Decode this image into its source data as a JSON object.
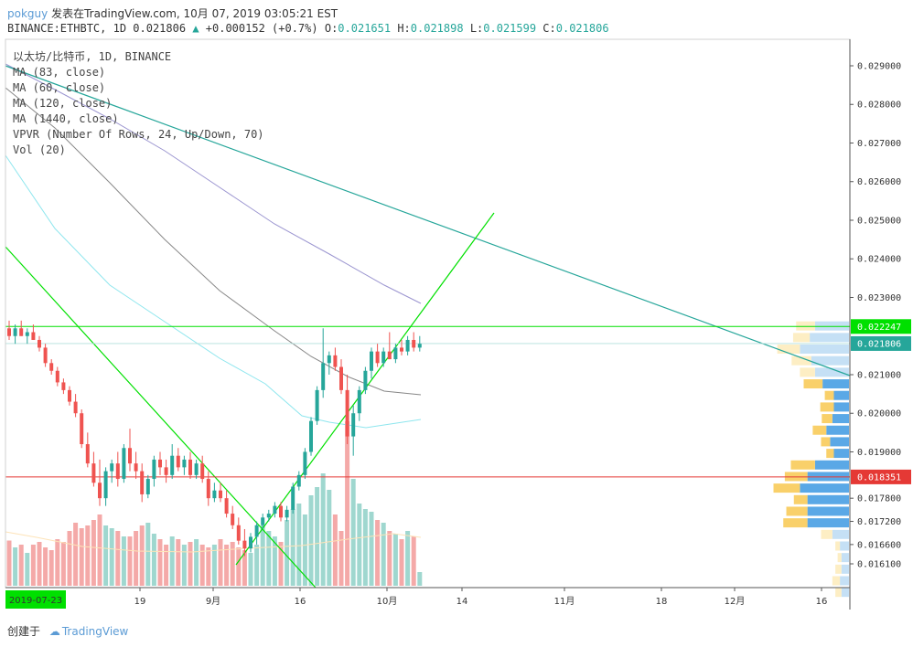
{
  "header": {
    "user": "pokguy",
    "published": "发表在TradingView.com, 10月 07, 2019 03:05:21 EST",
    "symbol": "BINANCE:ETHBTC, 1D",
    "last": "0.021806",
    "change": "+0.000152 (+0.7%)",
    "o_label": "O:",
    "o_value": "0.021651",
    "h_label": "H:",
    "h_value": "0.021898",
    "l_label": "L:",
    "l_value": "0.021599",
    "c_label": "C:",
    "c_value": "0.021806"
  },
  "legend": [
    "以太坊/比特币, 1D, BINANCE",
    "MA (83, close)",
    "MA (60, close)",
    "MA (120, close)",
    "MA (1440, close)",
    "VPVR (Number Of Rows, 24, Up/Down, 70)",
    "Vol (20)"
  ],
  "footer": {
    "created": "创建于",
    "brand": "TradingView"
  },
  "colors": {
    "up": "#26a69a",
    "down": "#ef5350",
    "trend": "#00e000",
    "resist": "#26a69a",
    "support": "#e53935"
  },
  "chart_data": {
    "type": "candlestick",
    "y_ticks": [
      "0.029000",
      "0.028000",
      "0.027000",
      "0.026000",
      "0.025000",
      "0.024000",
      "0.023000",
      "0.021000",
      "0.020000",
      "0.019000",
      "0.017800",
      "0.017200",
      "0.016600",
      "0.016100"
    ],
    "x_ticks": [
      "19",
      "9月",
      "16",
      "10月",
      "14",
      "11月",
      "18",
      "12月",
      "16"
    ],
    "date_tag": "2019-07-23",
    "price_tags": [
      {
        "label": "0.022247",
        "value": 0.022247,
        "color": "#00e000"
      },
      {
        "label": "0.021806",
        "value": 0.021806,
        "color": "#26a69a"
      },
      {
        "label": "0.018351",
        "value": 0.018351,
        "color": "#e53935"
      }
    ],
    "ylim": [
      0.0158,
      0.03
    ],
    "candles": [
      [
        0.0222,
        0.0224,
        0.0219,
        0.022
      ],
      [
        0.022,
        0.0223,
        0.0218,
        0.0222
      ],
      [
        0.0222,
        0.0224,
        0.022,
        0.022
      ],
      [
        0.022,
        0.0222,
        0.0218,
        0.0221
      ],
      [
        0.0221,
        0.0223,
        0.0219,
        0.0219
      ],
      [
        0.0219,
        0.022,
        0.0216,
        0.0217
      ],
      [
        0.0217,
        0.0218,
        0.0212,
        0.0213
      ],
      [
        0.0213,
        0.0214,
        0.021,
        0.0211
      ],
      [
        0.0211,
        0.0212,
        0.0207,
        0.0208
      ],
      [
        0.0208,
        0.0209,
        0.0205,
        0.0206
      ],
      [
        0.0206,
        0.0207,
        0.0202,
        0.0203
      ],
      [
        0.0203,
        0.0205,
        0.0199,
        0.02
      ],
      [
        0.02,
        0.0201,
        0.0191,
        0.0192
      ],
      [
        0.0192,
        0.0195,
        0.0186,
        0.0187
      ],
      [
        0.0187,
        0.019,
        0.0181,
        0.0182
      ],
      [
        0.0182,
        0.0188,
        0.0176,
        0.0178
      ],
      [
        0.0178,
        0.0186,
        0.0176,
        0.0185
      ],
      [
        0.0185,
        0.0188,
        0.0182,
        0.0187
      ],
      [
        0.0187,
        0.019,
        0.0181,
        0.0183
      ],
      [
        0.0183,
        0.0192,
        0.0182,
        0.0191
      ],
      [
        0.0191,
        0.0196,
        0.0185,
        0.0187
      ],
      [
        0.0187,
        0.019,
        0.0183,
        0.0185
      ],
      [
        0.0185,
        0.0187,
        0.0177,
        0.0179
      ],
      [
        0.0179,
        0.0184,
        0.0178,
        0.0183
      ],
      [
        0.0183,
        0.0189,
        0.0181,
        0.0188
      ],
      [
        0.0188,
        0.019,
        0.0184,
        0.0186
      ],
      [
        0.0186,
        0.0188,
        0.0182,
        0.0184
      ],
      [
        0.0184,
        0.0192,
        0.0183,
        0.0189
      ],
      [
        0.0189,
        0.0191,
        0.0185,
        0.0186
      ],
      [
        0.0186,
        0.0189,
        0.0184,
        0.0188
      ],
      [
        0.0188,
        0.019,
        0.0183,
        0.0184
      ],
      [
        0.0184,
        0.0188,
        0.0183,
        0.0187
      ],
      [
        0.0187,
        0.0189,
        0.0182,
        0.0183
      ],
      [
        0.0183,
        0.0185,
        0.0176,
        0.0178
      ],
      [
        0.0178,
        0.0182,
        0.0177,
        0.018
      ],
      [
        0.018,
        0.0182,
        0.0177,
        0.0178
      ],
      [
        0.0178,
        0.018,
        0.0173,
        0.0174
      ],
      [
        0.0174,
        0.0176,
        0.017,
        0.0171
      ],
      [
        0.0171,
        0.0173,
        0.0166,
        0.0167
      ],
      [
        0.0167,
        0.017,
        0.0163,
        0.0165
      ],
      [
        0.0165,
        0.0169,
        0.0164,
        0.0168
      ],
      [
        0.0168,
        0.0172,
        0.0166,
        0.0171
      ],
      [
        0.0171,
        0.0174,
        0.017,
        0.0173
      ],
      [
        0.0173,
        0.0175,
        0.0172,
        0.0174
      ],
      [
        0.0174,
        0.0177,
        0.0173,
        0.0176
      ],
      [
        0.0176,
        0.0177,
        0.0172,
        0.0173
      ],
      [
        0.0173,
        0.0176,
        0.0172,
        0.0175
      ],
      [
        0.0175,
        0.0182,
        0.0174,
        0.0181
      ],
      [
        0.0181,
        0.0185,
        0.018,
        0.0184
      ],
      [
        0.0184,
        0.0191,
        0.0183,
        0.019
      ],
      [
        0.019,
        0.0199,
        0.0189,
        0.0198
      ],
      [
        0.0198,
        0.0207,
        0.0197,
        0.0206
      ],
      [
        0.0206,
        0.0222,
        0.0204,
        0.0213
      ],
      [
        0.0213,
        0.0216,
        0.021,
        0.0215
      ],
      [
        0.0215,
        0.0217,
        0.0211,
        0.0212
      ],
      [
        0.0212,
        0.0214,
        0.0205,
        0.0206
      ],
      [
        0.0206,
        0.021,
        0.0192,
        0.0194
      ],
      [
        0.0194,
        0.0202,
        0.0189,
        0.02
      ],
      [
        0.02,
        0.0207,
        0.0198,
        0.0206
      ],
      [
        0.0206,
        0.0212,
        0.0205,
        0.0211
      ],
      [
        0.0211,
        0.0217,
        0.0209,
        0.0216
      ],
      [
        0.0216,
        0.0218,
        0.0212,
        0.0213
      ],
      [
        0.0213,
        0.0217,
        0.0212,
        0.0216
      ],
      [
        0.0216,
        0.0221,
        0.0214,
        0.0214
      ],
      [
        0.0214,
        0.0218,
        0.0213,
        0.0217
      ],
      [
        0.0217,
        0.0219,
        0.0215,
        0.0216
      ],
      [
        0.0216,
        0.022,
        0.0215,
        0.0219
      ],
      [
        0.0219,
        0.0221,
        0.0216,
        0.0217
      ],
      [
        0.0217,
        0.022,
        0.0216,
        0.0218
      ]
    ],
    "volumes": [
      0.33,
      0.28,
      0.3,
      0.24,
      0.3,
      0.32,
      0.28,
      0.26,
      0.34,
      0.32,
      0.4,
      0.46,
      0.42,
      0.44,
      0.48,
      0.52,
      0.44,
      0.42,
      0.4,
      0.36,
      0.36,
      0.4,
      0.44,
      0.46,
      0.38,
      0.34,
      0.3,
      0.36,
      0.34,
      0.3,
      0.32,
      0.34,
      0.3,
      0.28,
      0.3,
      0.34,
      0.3,
      0.32,
      0.28,
      0.26,
      0.24,
      0.3,
      0.44,
      0.4,
      0.36,
      0.32,
      0.48,
      0.56,
      0.6,
      0.52,
      0.66,
      0.72,
      0.82,
      0.7,
      0.52,
      0.4,
      1.2,
      0.78,
      0.6,
      0.56,
      0.54,
      0.48,
      0.46,
      0.4,
      0.38,
      0.34,
      0.4,
      0.36,
      0.1
    ],
    "vpvr": [
      {
        "price": 0.02225,
        "up": 0.25,
        "down": 0.45
      },
      {
        "price": 0.02195,
        "up": 0.22,
        "down": 0.52
      },
      {
        "price": 0.02165,
        "up": 0.3,
        "down": 0.65
      },
      {
        "price": 0.02135,
        "up": 0.26,
        "down": 0.5
      },
      {
        "price": 0.02105,
        "up": 0.2,
        "down": 0.45
      },
      {
        "price": 0.02075,
        "up": 0.25,
        "down": 0.35
      },
      {
        "price": 0.02045,
        "up": 0.12,
        "down": 0.2
      },
      {
        "price": 0.02015,
        "up": 0.18,
        "down": 0.2
      },
      {
        "price": 0.01985,
        "up": 0.14,
        "down": 0.22
      },
      {
        "price": 0.01955,
        "up": 0.18,
        "down": 0.3
      },
      {
        "price": 0.01925,
        "up": 0.12,
        "down": 0.25
      },
      {
        "price": 0.01895,
        "up": 0.1,
        "down": 0.2
      },
      {
        "price": 0.01865,
        "up": 0.32,
        "down": 0.45
      },
      {
        "price": 0.01835,
        "up": 0.3,
        "down": 0.55
      },
      {
        "price": 0.01805,
        "up": 0.35,
        "down": 0.65
      },
      {
        "price": 0.01775,
        "up": 0.18,
        "down": 0.55
      },
      {
        "price": 0.01745,
        "up": 0.28,
        "down": 0.55
      },
      {
        "price": 0.01715,
        "up": 0.32,
        "down": 0.55
      },
      {
        "price": 0.01685,
        "up": 0.15,
        "down": 0.22
      },
      {
        "price": 0.01655,
        "up": 0.06,
        "down": 0.12
      },
      {
        "price": 0.01625,
        "up": 0.05,
        "down": 0.1
      },
      {
        "price": 0.01595,
        "up": 0.08,
        "down": 0.1
      },
      {
        "price": 0.01565,
        "up": 0.1,
        "down": 0.12
      },
      {
        "price": 0.01535,
        "up": 0.08,
        "down": 0.1
      }
    ]
  }
}
